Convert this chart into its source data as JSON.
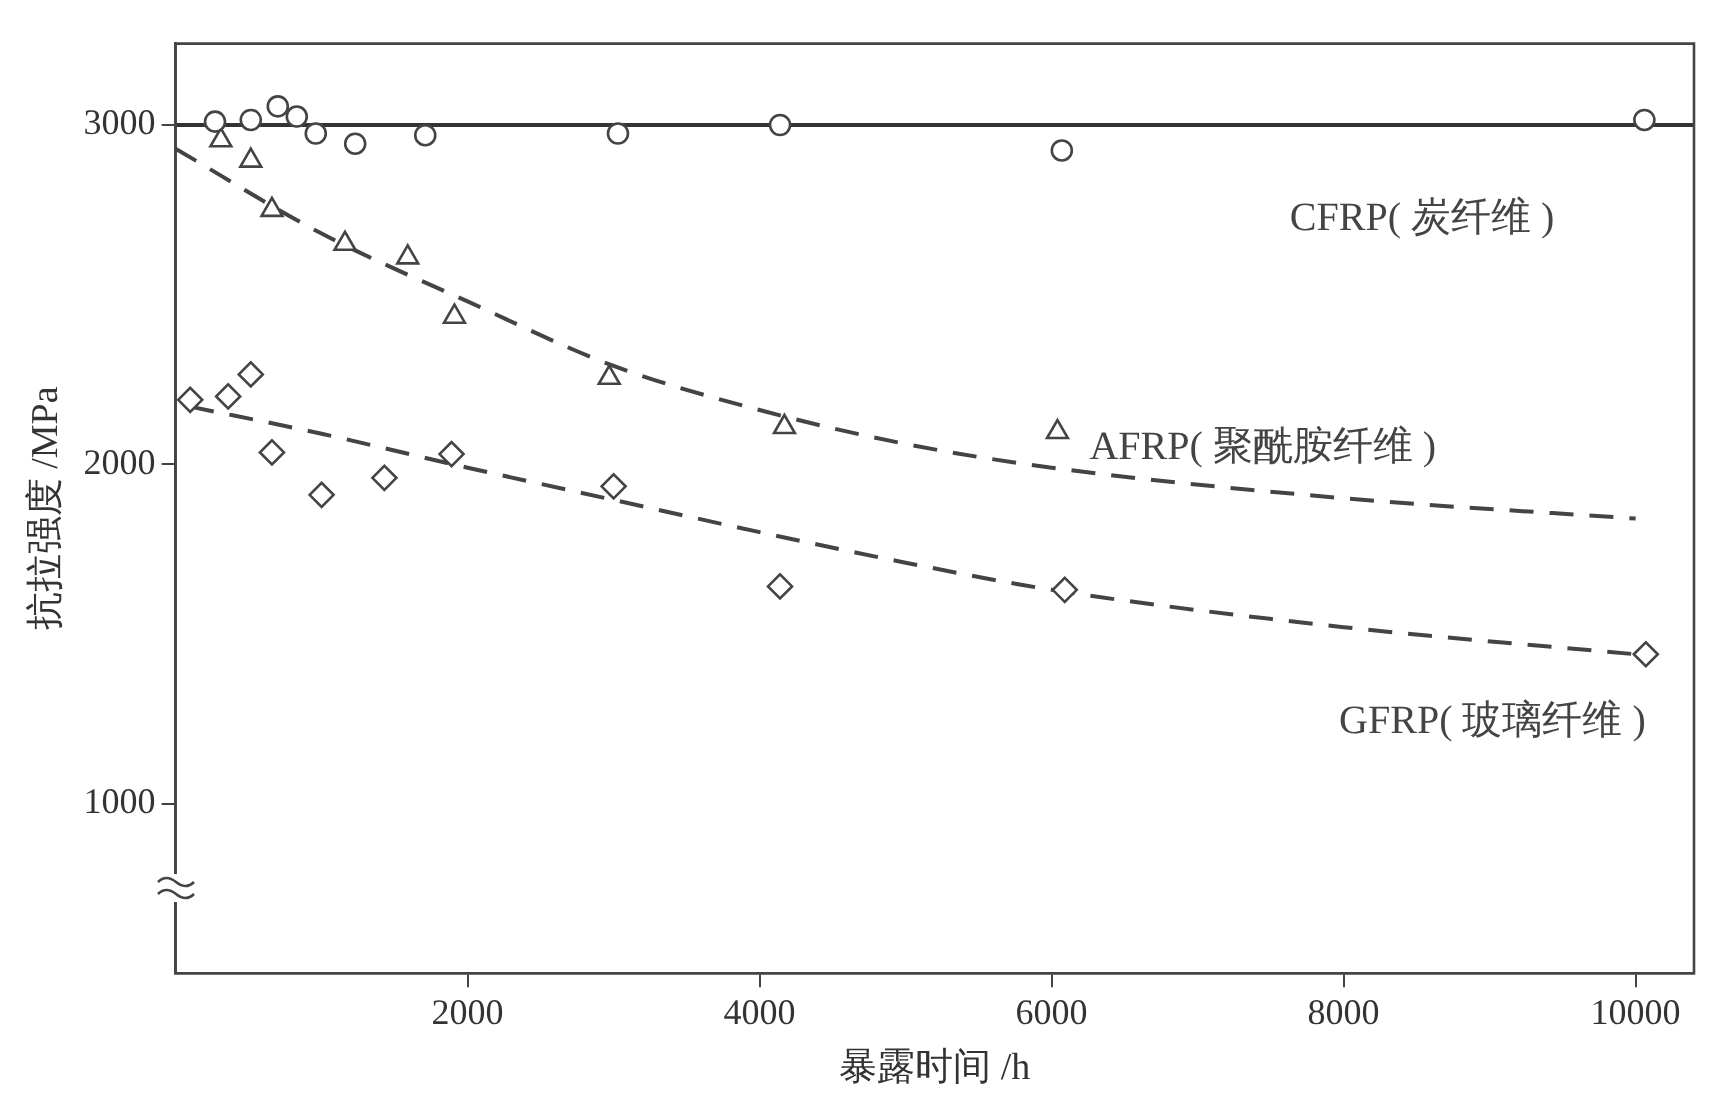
{
  "chart_data": {
    "type": "scatter",
    "xlabel": "暴露时间 /h",
    "ylabel": "抗拉强度 /MPa",
    "xlim": [
      0,
      10400
    ],
    "xticks": [
      2000,
      4000,
      6000,
      8000,
      10000
    ],
    "ylim": [
      500,
      3240
    ],
    "yticks": [
      1000,
      2000,
      3000
    ],
    "grid": false,
    "legend": false,
    "series": [
      {
        "name": "CFRP( 炭纤维 )",
        "marker": "circle",
        "color": "#444444",
        "x": [
          270,
          515,
          700,
          830,
          960,
          1230,
          1710,
          3030,
          4140,
          6070,
          10060
        ],
        "values": [
          3010,
          3015,
          3055,
          3025,
          2975,
          2945,
          2970,
          2975,
          3000,
          2925,
          3015
        ]
      },
      {
        "name": "AFRP( 聚酰胺纤维 )",
        "marker": "triangle",
        "color": "#444444",
        "x": [
          310,
          515,
          660,
          1160,
          1590,
          1910,
          2970,
          4170,
          6040
        ],
        "values": [
          2955,
          2895,
          2750,
          2650,
          2610,
          2435,
          2255,
          2110,
          2095
        ]
      },
      {
        "name": "GFRP( 玻璃纤维 )",
        "marker": "diamond",
        "color": "#444444",
        "x": [
          100,
          360,
          515,
          660,
          1000,
          1430,
          1890,
          3000,
          4140,
          6090,
          10070
        ],
        "values": [
          2190,
          2200,
          2265,
          2035,
          1910,
          1960,
          2030,
          1935,
          1640,
          1630,
          1440
        ]
      },
      {
        "type": "line",
        "marker": "none",
        "line_style": "solid",
        "color": "#333333",
        "x": [
          0,
          10400
        ],
        "values": [
          3000,
          3000
        ]
      },
      {
        "type": "line",
        "marker": "none",
        "line_style": "dashed",
        "color": "#444444",
        "x": [
          0,
          1000,
          2000,
          3000,
          4000,
          5000,
          6000,
          8000,
          10000
        ],
        "values": [
          2930,
          2680,
          2480,
          2290,
          2160,
          2060,
          1990,
          1900,
          1840
        ]
      },
      {
        "type": "line",
        "marker": "none",
        "line_style": "dashed",
        "color": "#444444",
        "x": [
          100,
          1000,
          2000,
          3000,
          4000,
          5000,
          6000,
          8000,
          10000
        ],
        "values": [
          2170,
          2090,
          1990,
          1895,
          1800,
          1710,
          1630,
          1520,
          1440
        ]
      }
    ]
  }
}
